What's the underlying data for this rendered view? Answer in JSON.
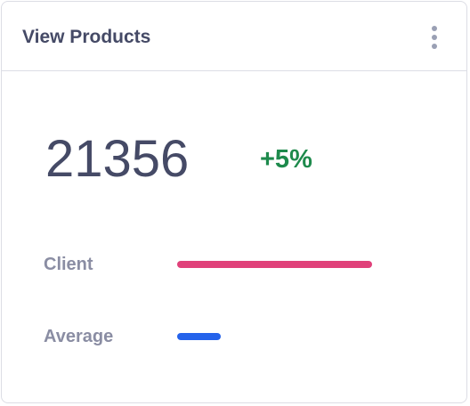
{
  "card": {
    "title": "View Products",
    "menu_icon": "more-vertical-icon"
  },
  "metric": {
    "value": "21356",
    "change": "+5%",
    "change_color": "#1e8a4c"
  },
  "stats": [
    {
      "label": "Client",
      "color": "#e0417a",
      "fraction": 0.81
    },
    {
      "label": "Average",
      "color": "#2563eb",
      "fraction": 0.18
    }
  ]
}
